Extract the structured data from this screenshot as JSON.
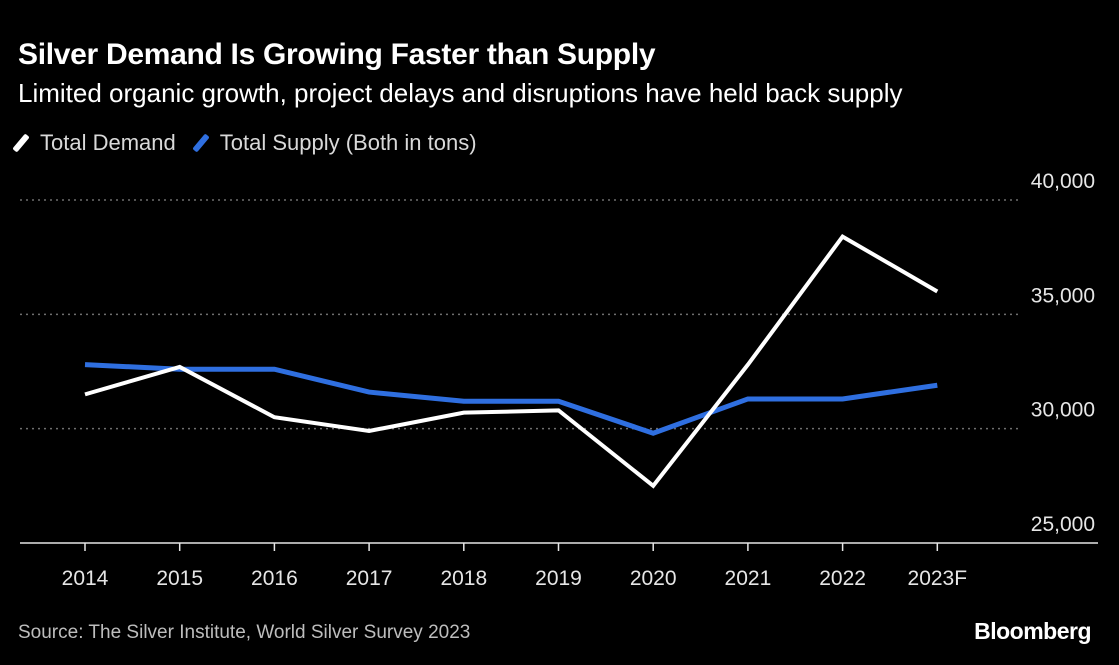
{
  "colors": {
    "background": "#000000",
    "demand": "#ffffff",
    "supply": "#2f6fe0",
    "grid": "#6f6f6f",
    "tick_text": "#e6e6e6"
  },
  "chart_data": {
    "type": "line",
    "title": "Silver Demand Is Growing Faster than Supply",
    "subtitle": "Limited organic growth, project delays and disruptions have held back supply",
    "categories": [
      "2014",
      "2015",
      "2016",
      "2017",
      "2018",
      "2019",
      "2020",
      "2021",
      "2022",
      "2023F"
    ],
    "series": [
      {
        "name": "Total Demand",
        "color": "#ffffff",
        "values": [
          31500,
          32700,
          30500,
          29900,
          30700,
          30800,
          27500,
          32800,
          38400,
          36000
        ]
      },
      {
        "name": "Total Supply (Both in tons)",
        "color": "#2f6fe0",
        "values": [
          32800,
          32600,
          32600,
          31600,
          31200,
          31200,
          29800,
          31300,
          31300,
          31900
        ]
      }
    ],
    "ylim": [
      25000,
      40000
    ],
    "yticks": [
      25000,
      30000,
      35000,
      40000
    ],
    "ytick_labels": [
      "25,000",
      "30,000",
      "35,000",
      "40,000"
    ],
    "y_axis_side": "right",
    "grid": "dotted horizontal",
    "legend_placement": "top-left",
    "source": "Source: The Silver Institute, World Silver Survey 2023",
    "brand": "Bloomberg"
  }
}
